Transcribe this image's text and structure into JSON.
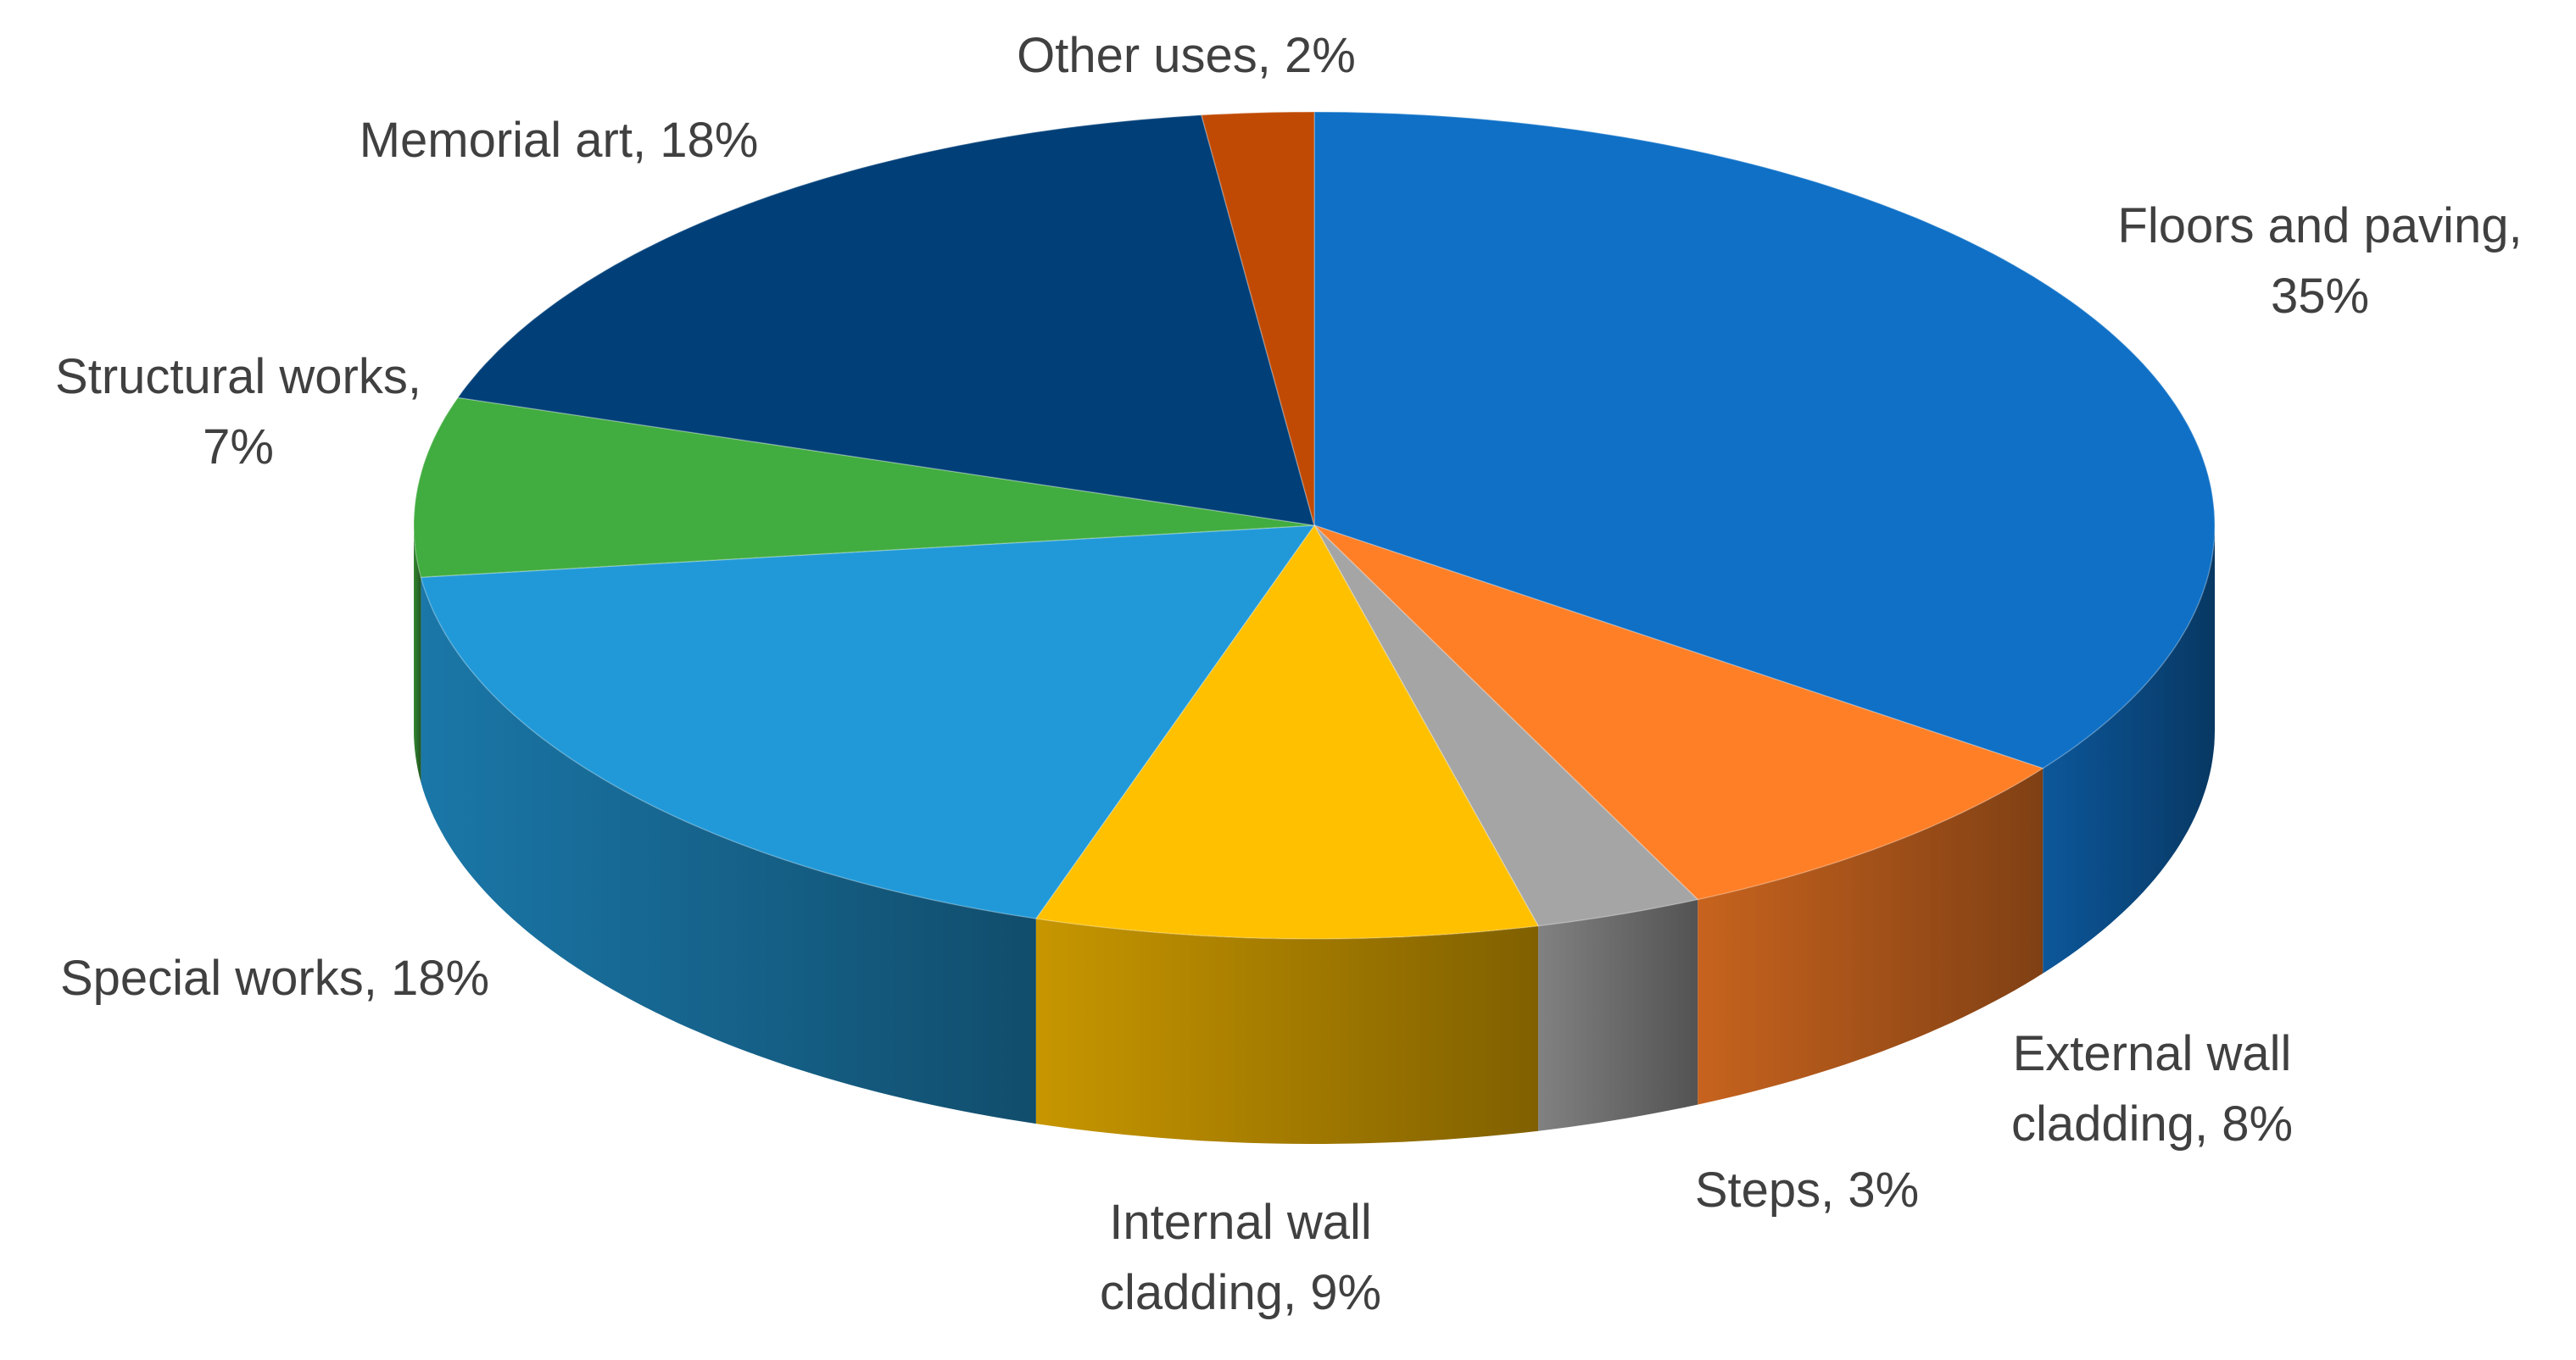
{
  "chart_data": {
    "type": "pie3d",
    "labels": [
      "Floors  and paving,\n35%",
      "External wall\ncladding, 8%",
      "Steps, 3%",
      "Internal wall\ncladding, 9%",
      "Special works, 18%",
      "Structural works,\n7%",
      "Memorial art, 18%",
      "Other uses, 2%"
    ],
    "values": [
      35,
      8,
      3,
      9,
      18,
      7,
      18,
      2
    ],
    "colors": [
      "#0F70C6",
      "#FF7F27",
      "#A5A5A5",
      "#FFC000",
      "#2199D8",
      "#41AC3F",
      "#003F78",
      "#C04A04"
    ]
  }
}
